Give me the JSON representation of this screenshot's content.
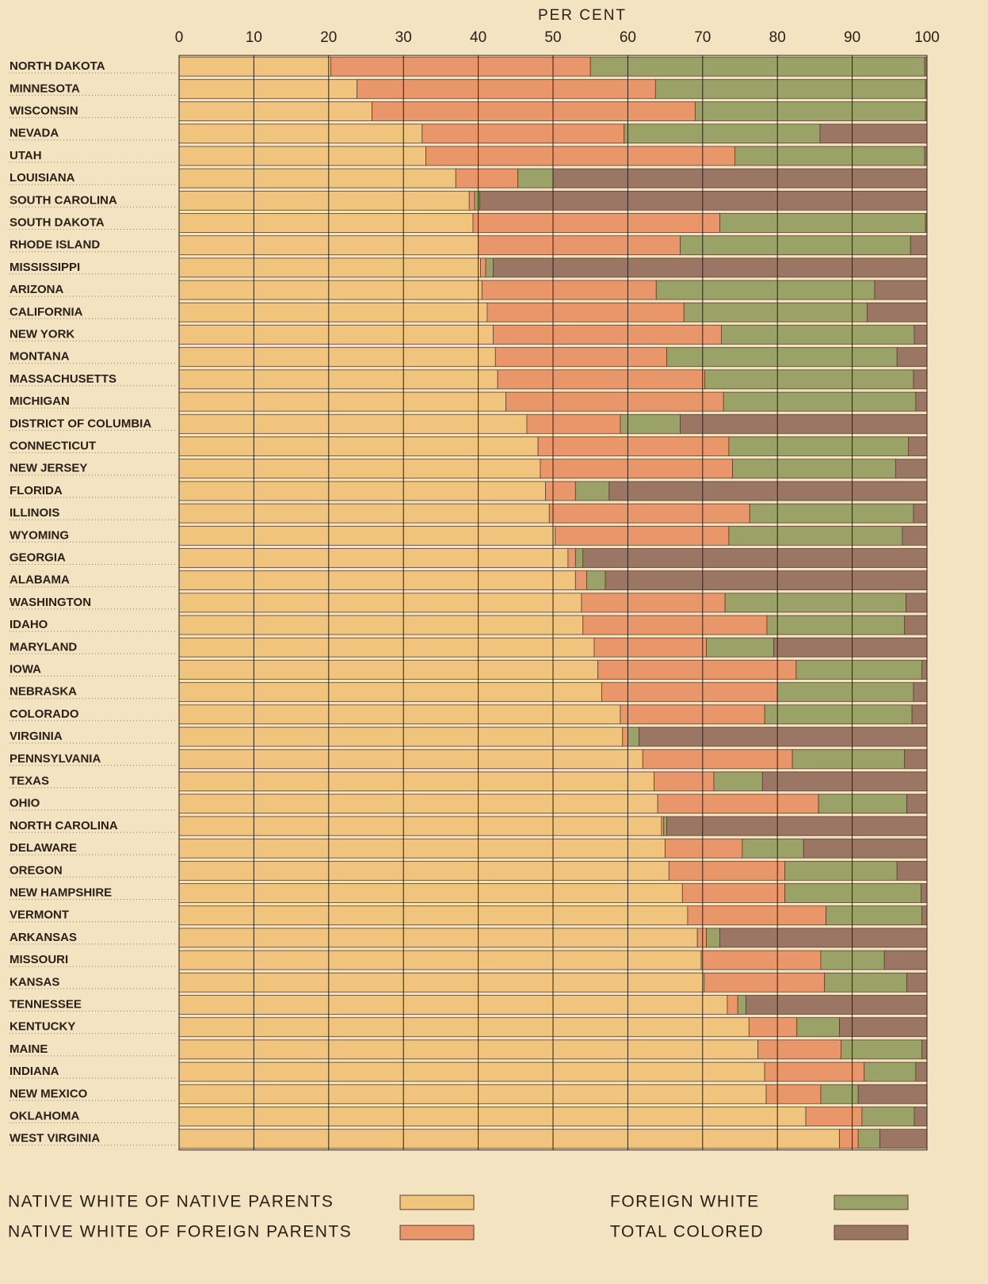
{
  "chart_data": {
    "type": "stacked-bar",
    "orientation": "horizontal",
    "x_label": "PER CENT",
    "xlim": [
      0,
      100
    ],
    "xticks": [
      0,
      10,
      20,
      30,
      40,
      50,
      60,
      70,
      80,
      90,
      100
    ],
    "grid": true,
    "legend": "bottom",
    "categories": [
      "NORTH DAKOTA",
      "MINNESOTA",
      "WISCONSIN",
      "NEVADA",
      "UTAH",
      "LOUISIANA",
      "SOUTH CAROLINA",
      "SOUTH DAKOTA",
      "RHODE ISLAND",
      "MISSISSIPPI",
      "ARIZONA",
      "CALIFORNIA",
      "NEW YORK",
      "MONTANA",
      "MASSACHUSETTS",
      "MICHIGAN",
      "DISTRICT OF COLUMBIA",
      "CONNECTICUT",
      "NEW JERSEY",
      "FLORIDA",
      "ILLINOIS",
      "WYOMING",
      "GEORGIA",
      "ALABAMA",
      "WASHINGTON",
      "IDAHO",
      "MARYLAND",
      "IOWA",
      "NEBRASKA",
      "COLORADO",
      "VIRGINIA",
      "PENNSYLVANIA",
      "TEXAS",
      "OHIO",
      "NORTH CAROLINA",
      "DELAWARE",
      "OREGON",
      "NEW HAMPSHIRE",
      "VERMONT",
      "ARKANSAS",
      "MISSOURI",
      "KANSAS",
      "TENNESSEE",
      "KENTUCKY",
      "MAINE",
      "INDIANA",
      "NEW MEXICO",
      "OKLAHOMA",
      "WEST VIRGINIA"
    ],
    "series": [
      {
        "name": "NATIVE WHITE OF NATIVE PARENTS",
        "color": "#f0c47c",
        "values": [
          20.3,
          23.8,
          25.8,
          32.5,
          33.0,
          37.0,
          38.8,
          39.3,
          40.0,
          40.3,
          40.5,
          41.2,
          42.0,
          42.3,
          42.6,
          43.7,
          46.5,
          48.0,
          48.3,
          49.0,
          49.5,
          50.3,
          52.0,
          53.0,
          53.8,
          54.0,
          55.5,
          56.0,
          56.5,
          59.0,
          59.3,
          62.0,
          63.5,
          64.0,
          64.5,
          65.0,
          65.5,
          67.3,
          68.0,
          69.3,
          69.8,
          70.2,
          73.3,
          76.2,
          77.4,
          78.3,
          78.5,
          83.8,
          88.3
        ]
      },
      {
        "name": "NATIVE WHITE OF FOREIGN PARENTS",
        "color": "#e9966a",
        "values": [
          34.7,
          39.9,
          43.2,
          27.0,
          41.3,
          8.3,
          0.7,
          33.0,
          27.0,
          0.7,
          23.3,
          26.3,
          30.5,
          22.9,
          27.7,
          29.1,
          12.5,
          25.5,
          25.7,
          4.0,
          26.8,
          23.2,
          1.0,
          1.5,
          19.2,
          24.6,
          15.0,
          26.5,
          23.5,
          19.3,
          0.7,
          20.0,
          8.0,
          21.5,
          0.3,
          10.3,
          15.5,
          13.7,
          18.5,
          1.2,
          16.0,
          16.1,
          1.4,
          6.4,
          11.1,
          13.3,
          7.3,
          7.5,
          2.5
        ]
      },
      {
        "name": "FOREIGN WHITE",
        "color": "#9ba267",
        "values": [
          44.7,
          36.1,
          30.8,
          26.2,
          25.4,
          4.7,
          0.7,
          27.5,
          30.8,
          1.0,
          29.2,
          24.5,
          25.8,
          30.8,
          27.9,
          25.7,
          8.0,
          24.0,
          21.8,
          4.5,
          21.9,
          23.2,
          1.0,
          2.5,
          24.2,
          18.4,
          9.0,
          16.8,
          18.2,
          19.7,
          1.5,
          15.0,
          6.5,
          11.8,
          0.4,
          8.2,
          15.0,
          18.2,
          12.8,
          1.8,
          8.5,
          11.0,
          1.1,
          5.7,
          10.8,
          6.9,
          5.0,
          7.0,
          2.9
        ]
      },
      {
        "name": "TOTAL COLORED",
        "color": "#9b7665",
        "values": [
          0.3,
          0.2,
          0.2,
          14.3,
          0.3,
          50.0,
          59.8,
          0.2,
          2.2,
          58.0,
          7.0,
          8.0,
          1.7,
          4.0,
          1.8,
          1.5,
          33.0,
          2.5,
          4.2,
          42.5,
          1.8,
          3.3,
          46.0,
          43.0,
          2.8,
          3.0,
          20.5,
          0.7,
          1.8,
          2.0,
          38.5,
          3.0,
          22.0,
          2.7,
          34.8,
          16.5,
          4.0,
          0.8,
          0.7,
          27.7,
          5.7,
          2.7,
          24.2,
          11.7,
          0.7,
          1.5,
          9.2,
          1.7,
          6.3
        ]
      }
    ]
  }
}
